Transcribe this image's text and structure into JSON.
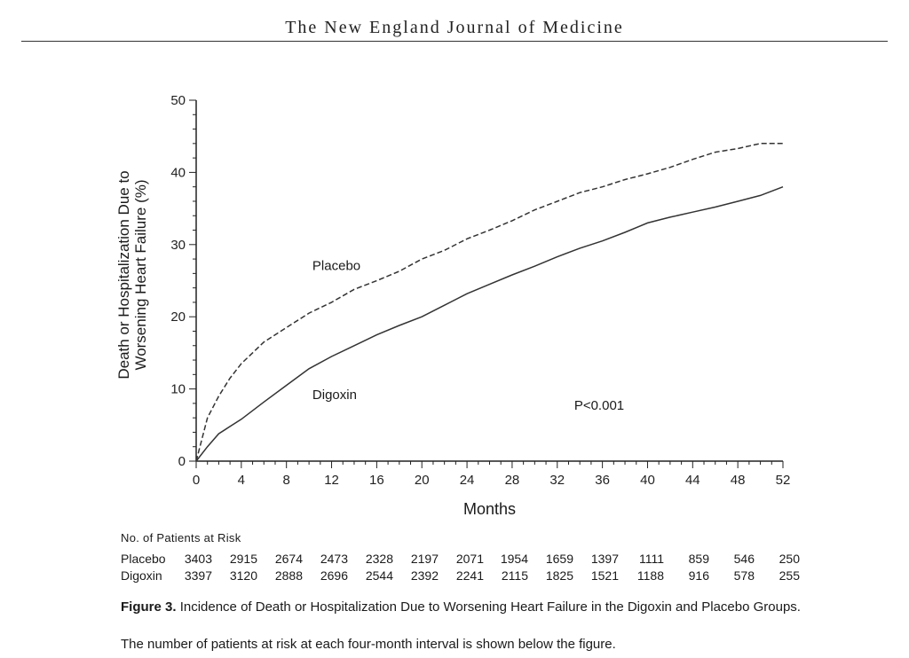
{
  "header": {
    "journal": "The New England Journal of Medicine"
  },
  "chart_data": {
    "type": "line",
    "ylabel_line1": "Death or Hospitalization Due to",
    "ylabel_line2": "Worsening Heart Failure (%)",
    "xlabel": "Months",
    "xlim": [
      0,
      52
    ],
    "ylim": [
      0,
      50
    ],
    "xticks": [
      0,
      4,
      8,
      12,
      16,
      20,
      24,
      28,
      32,
      36,
      40,
      44,
      48,
      52
    ],
    "yticks": [
      0,
      10,
      20,
      30,
      40,
      50
    ],
    "grid": false,
    "annotation": "P<0.001",
    "series": [
      {
        "name": "Placebo",
        "style": "dashed",
        "x": [
          0,
          1,
          2,
          3,
          4,
          6,
          8,
          10,
          12,
          14,
          16,
          18,
          20,
          22,
          24,
          26,
          28,
          30,
          32,
          34,
          36,
          38,
          40,
          42,
          44,
          46,
          48,
          50,
          52
        ],
        "y": [
          0,
          6,
          9,
          11.5,
          13.5,
          16.5,
          18.5,
          20.5,
          22,
          23.8,
          25,
          26.3,
          28,
          29.2,
          30.8,
          32,
          33.3,
          34.8,
          36,
          37.2,
          38,
          39,
          39.8,
          40.7,
          41.8,
          42.8,
          43.3,
          44,
          44
        ]
      },
      {
        "name": "Digoxin",
        "style": "solid",
        "x": [
          0,
          1,
          2,
          3,
          4,
          6,
          8,
          10,
          12,
          14,
          16,
          18,
          20,
          22,
          24,
          26,
          28,
          30,
          32,
          34,
          36,
          38,
          40,
          42,
          44,
          46,
          48,
          50,
          52
        ],
        "y": [
          0,
          2,
          3.8,
          4.8,
          5.8,
          8.2,
          10.5,
          12.8,
          14.5,
          16,
          17.5,
          18.8,
          20,
          21.6,
          23.2,
          24.5,
          25.8,
          27,
          28.3,
          29.5,
          30.5,
          31.7,
          33,
          33.8,
          34.5,
          35.2,
          36,
          36.8,
          38
        ]
      }
    ]
  },
  "risk_table": {
    "title": "No. of Patients at Risk",
    "rows": [
      {
        "name": "Placebo",
        "values": [
          "3403",
          "2915",
          "2674",
          "2473",
          "2328",
          "2197",
          "2071",
          "1954",
          "1659",
          "1397",
          "1111",
          "859",
          "546",
          "250"
        ]
      },
      {
        "name": "Digoxin",
        "values": [
          "3397",
          "3120",
          "2888",
          "2696",
          "2544",
          "2392",
          "2241",
          "2115",
          "1825",
          "1521",
          "1188",
          "916",
          "578",
          "255"
        ]
      }
    ]
  },
  "caption": {
    "figure_label": "Figure 3.",
    "text": "Incidence of Death or Hospitalization Due to Worsening Heart Failure in the Digoxin and Placebo Groups.",
    "note": "The number of patients at risk at each four-month interval is shown below the figure."
  }
}
